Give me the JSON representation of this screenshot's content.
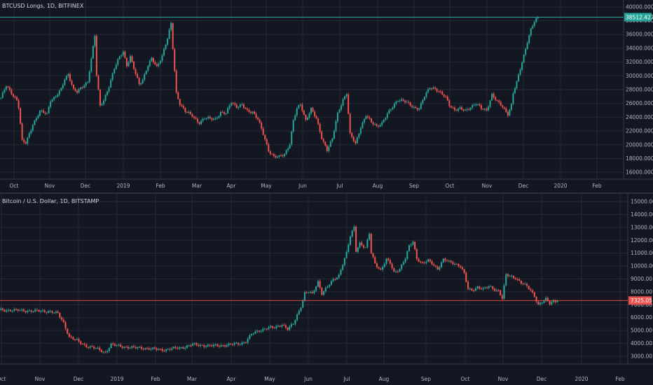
{
  "colors": {
    "background": "#131722",
    "grid": "#242936",
    "up": "#26a69a",
    "down": "#ef5350",
    "axis_line": "#363a45"
  },
  "chart_data": [
    {
      "type": "candlestick",
      "title": "BTCUSD Longs, 1D, BITFINEX",
      "y_ticks": [
        16000,
        18000,
        20000,
        22000,
        24000,
        26000,
        28000,
        30000,
        32000,
        34000,
        36000,
        38000,
        40000
      ],
      "y_tick_labels": [
        "16000.0000",
        "18000.0000",
        "20000.0000",
        "22000.0000",
        "24000.0000",
        "26000.0000",
        "28000.0000",
        "30000.0000",
        "32000.0000",
        "34000.0000",
        "36000.0000",
        "38000.0000",
        "40000.0000"
      ],
      "ylim": [
        15000,
        41000
      ],
      "x_labels": [
        "Oct",
        "Nov",
        "Dec",
        "2019",
        "Feb",
        "Mar",
        "Apr",
        "May",
        "Jun",
        "Jul",
        "Aug",
        "Sep",
        "Oct",
        "Nov",
        "Dec",
        "2020",
        "Feb"
      ],
      "last_value": 38512.4275,
      "last_value_label": "38512.4275",
      "last_color": "#26a69a",
      "anchors": [
        [
          0,
          26800
        ],
        [
          3,
          28500
        ],
        [
          6,
          27500
        ],
        [
          9,
          26500
        ],
        [
          10,
          25500
        ],
        [
          12,
          20500
        ],
        [
          14,
          20200
        ],
        [
          18,
          23000
        ],
        [
          22,
          24800
        ],
        [
          26,
          24500
        ],
        [
          28,
          26500
        ],
        [
          31,
          27000
        ],
        [
          34,
          28000
        ],
        [
          36,
          29500
        ],
        [
          38,
          30300
        ],
        [
          41,
          28000
        ],
        [
          43,
          27600
        ],
        [
          46,
          28400
        ],
        [
          49,
          29200
        ],
        [
          51,
          32500
        ],
        [
          53,
          35800
        ],
        [
          54,
          30000
        ],
        [
          56,
          25600
        ],
        [
          58,
          26500
        ],
        [
          61,
          28500
        ],
        [
          64,
          31000
        ],
        [
          67,
          32800
        ],
        [
          69,
          33600
        ],
        [
          71,
          31500
        ],
        [
          73,
          32700
        ],
        [
          75,
          31000
        ],
        [
          78,
          28800
        ],
        [
          80,
          29500
        ],
        [
          83,
          31500
        ],
        [
          85,
          32400
        ],
        [
          88,
          31300
        ],
        [
          91,
          33000
        ],
        [
          94,
          35400
        ],
        [
          96,
          37500
        ],
        [
          97,
          34000
        ],
        [
          99,
          27500
        ],
        [
          101,
          26000
        ],
        [
          104,
          24800
        ],
        [
          108,
          24200
        ],
        [
          112,
          23200
        ],
        [
          115,
          23800
        ],
        [
          118,
          23800
        ],
        [
          121,
          23800
        ],
        [
          124,
          24600
        ],
        [
          127,
          24500
        ],
        [
          130,
          26300
        ],
        [
          133,
          25500
        ],
        [
          136,
          25700
        ],
        [
          139,
          24900
        ],
        [
          142,
          24800
        ],
        [
          145,
          23700
        ],
        [
          148,
          21500
        ],
        [
          151,
          19200
        ],
        [
          154,
          18300
        ],
        [
          157,
          18200
        ],
        [
          160,
          18600
        ],
        [
          163,
          20200
        ],
        [
          165,
          23500
        ],
        [
          167,
          25200
        ],
        [
          169,
          25800
        ],
        [
          172,
          23600
        ],
        [
          175,
          25200
        ],
        [
          178,
          23700
        ],
        [
          181,
          21000
        ],
        [
          184,
          19300
        ],
        [
          187,
          20800
        ],
        [
          190,
          24500
        ],
        [
          193,
          26600
        ],
        [
          195,
          27500
        ],
        [
          197,
          21500
        ],
        [
          200,
          20100
        ],
        [
          203,
          22600
        ],
        [
          206,
          24300
        ],
        [
          209,
          23200
        ],
        [
          212,
          22700
        ],
        [
          215,
          23200
        ],
        [
          218,
          24400
        ],
        [
          221,
          25500
        ],
        [
          224,
          26600
        ],
        [
          227,
          26400
        ],
        [
          230,
          25900
        ],
        [
          233,
          25400
        ],
        [
          236,
          25300
        ],
        [
          239,
          27000
        ],
        [
          242,
          28300
        ],
        [
          245,
          28200
        ],
        [
          248,
          27500
        ],
        [
          251,
          26800
        ],
        [
          253,
          25800
        ],
        [
          256,
          25100
        ],
        [
          259,
          25200
        ],
        [
          262,
          24900
        ],
        [
          265,
          25500
        ],
        [
          268,
          26000
        ],
        [
          271,
          25200
        ],
        [
          274,
          25000
        ],
        [
          277,
          27300
        ],
        [
          280,
          26200
        ],
        [
          283,
          25500
        ],
        [
          286,
          24500
        ],
        [
          288,
          25800
        ],
        [
          289,
          27500
        ],
        [
          291,
          29000
        ],
        [
          293,
          31000
        ],
        [
          295,
          33000
        ],
        [
          297,
          35000
        ],
        [
          299,
          36700
        ],
        [
          301,
          37800
        ],
        [
          303,
          38512.4275
        ]
      ]
    },
    {
      "type": "candlestick",
      "title": "Bitcoin / U.S. Dollar, 1D, BITSTAMP",
      "y_ticks": [
        3000,
        4000,
        5000,
        6000,
        7000,
        8000,
        9000,
        10000,
        11000,
        12000,
        13000,
        14000,
        15000
      ],
      "y_tick_labels": [
        "3000.00",
        "4000.00",
        "5000.00",
        "6000.00",
        "7000.00",
        "8000.00",
        "9000.00",
        "10000.00",
        "11000.00",
        "12000.00",
        "13000.00",
        "14000.00",
        "15000.00"
      ],
      "ylim": [
        2400,
        15600
      ],
      "x_labels": [
        "Oct",
        "Nov",
        "Dec",
        "2019",
        "Feb",
        "Mar",
        "Apr",
        "May",
        "Jun",
        "Jul",
        "Aug",
        "Sep",
        "Oct",
        "Nov",
        "Dec",
        "2020",
        "Feb"
      ],
      "last_value": 7325.05,
      "last_value_label": "7325.05",
      "last_color": "#ef5350",
      "anchors": [
        [
          0,
          6600
        ],
        [
          10,
          6550
        ],
        [
          20,
          6500
        ],
        [
          25,
          6500
        ],
        [
          30,
          6300
        ],
        [
          33,
          5600
        ],
        [
          36,
          4500
        ],
        [
          40,
          4200
        ],
        [
          45,
          3800
        ],
        [
          50,
          3600
        ],
        [
          55,
          3300
        ],
        [
          58,
          3900
        ],
        [
          62,
          3800
        ],
        [
          67,
          3700
        ],
        [
          71,
          3650
        ],
        [
          75,
          3650
        ],
        [
          80,
          3550
        ],
        [
          86,
          3500
        ],
        [
          91,
          3600
        ],
        [
          96,
          3700
        ],
        [
          101,
          3900
        ],
        [
          106,
          3850
        ],
        [
          111,
          3800
        ],
        [
          116,
          3850
        ],
        [
          121,
          3900
        ],
        [
          126,
          4000
        ],
        [
          129,
          4150
        ],
        [
          132,
          4700
        ],
        [
          136,
          5000
        ],
        [
          140,
          5200
        ],
        [
          144,
          5200
        ],
        [
          148,
          5500
        ],
        [
          151,
          5100
        ],
        [
          154,
          5500
        ],
        [
          156,
          6200
        ],
        [
          158,
          6900
        ],
        [
          160,
          7900
        ],
        [
          162,
          8000
        ],
        [
          164,
          7800
        ],
        [
          167,
          8800
        ],
        [
          169,
          7900
        ],
        [
          172,
          8400
        ],
        [
          175,
          8900
        ],
        [
          178,
          9300
        ],
        [
          180,
          10200
        ],
        [
          182,
          11000
        ],
        [
          184,
          12300
        ],
        [
          186,
          13000
        ],
        [
          187,
          11200
        ],
        [
          189,
          11800
        ],
        [
          192,
          11400
        ],
        [
          194,
          12500
        ],
        [
          195,
          11000
        ],
        [
          197,
          10200
        ],
        [
          200,
          9700
        ],
        [
          203,
          10500
        ],
        [
          205,
          10200
        ],
        [
          207,
          9500
        ],
        [
          210,
          9800
        ],
        [
          213,
          10600
        ],
        [
          215,
          11500
        ],
        [
          217,
          11900
        ],
        [
          219,
          10600
        ],
        [
          222,
          10200
        ],
        [
          225,
          10400
        ],
        [
          227,
          10200
        ],
        [
          230,
          9800
        ],
        [
          233,
          10500
        ],
        [
          236,
          10300
        ],
        [
          239,
          10200
        ],
        [
          242,
          10000
        ],
        [
          244,
          9400
        ],
        [
          246,
          8200
        ],
        [
          248,
          8100
        ],
        [
          251,
          8400
        ],
        [
          254,
          8200
        ],
        [
          257,
          8400
        ],
        [
          260,
          8200
        ],
        [
          262,
          8100
        ],
        [
          264,
          7500
        ],
        [
          266,
          9300
        ],
        [
          268,
          9200
        ],
        [
          271,
          9100
        ],
        [
          274,
          8700
        ],
        [
          277,
          8400
        ],
        [
          279,
          8100
        ],
        [
          281,
          7700
        ],
        [
          283,
          7000
        ],
        [
          285,
          7200
        ],
        [
          287,
          7400
        ],
        [
          289,
          7100
        ],
        [
          291,
          7300
        ],
        [
          293,
          7325.05
        ]
      ]
    }
  ]
}
